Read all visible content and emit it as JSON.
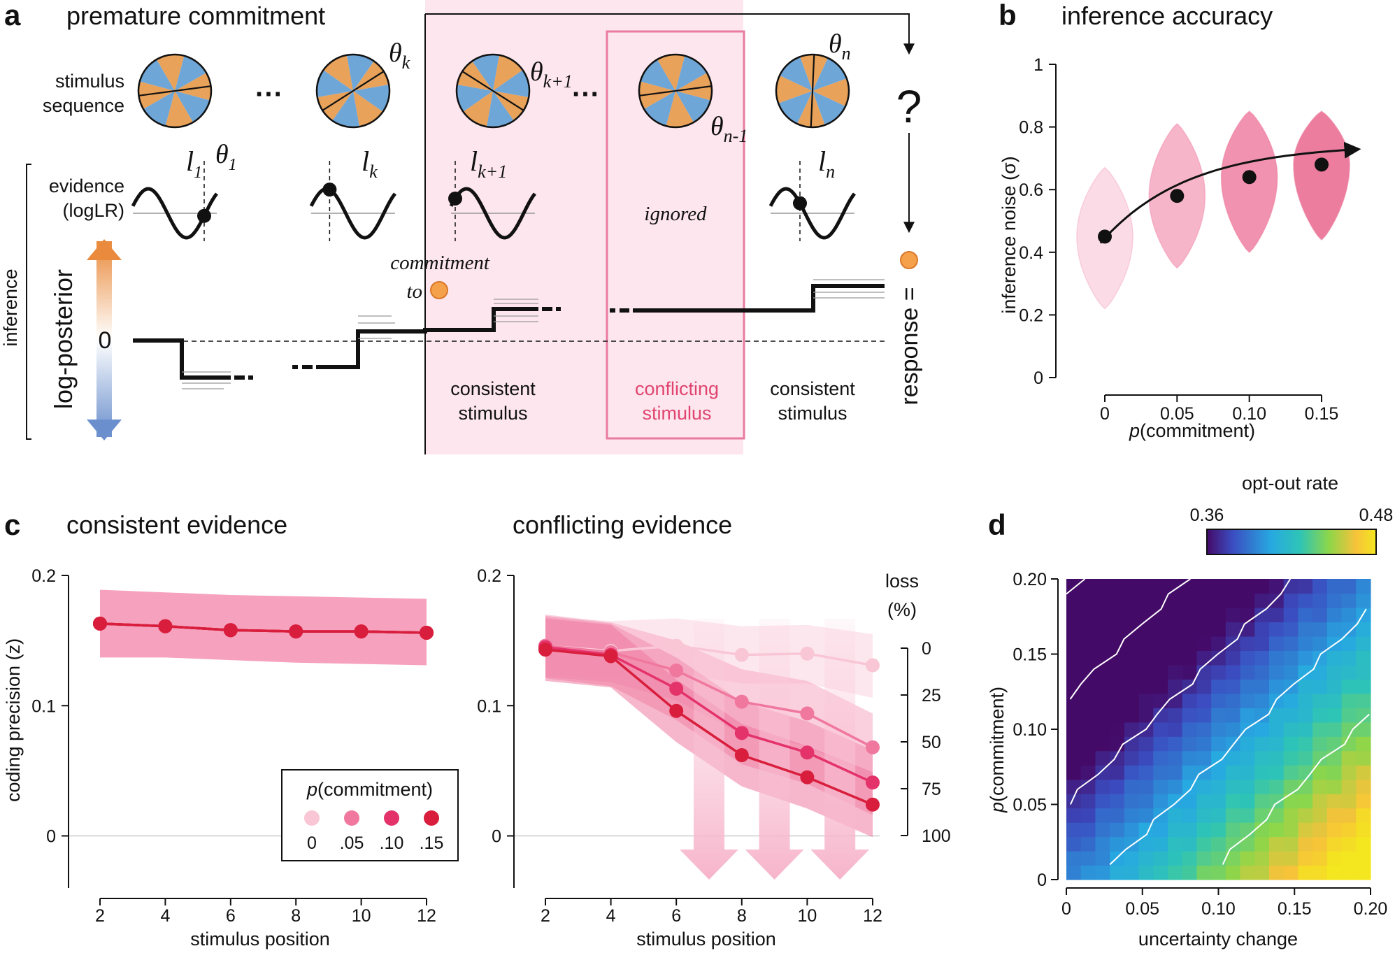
{
  "panel_a": {
    "letter": "a",
    "title": "premature commitment",
    "stimulus_label": [
      "stimulus",
      "sequence"
    ],
    "evidence_label": [
      "evidence",
      "(logLR)"
    ],
    "inference_label": "inference",
    "posterior_label": "log-posterior",
    "zero_label": "0",
    "ellipsis": "···",
    "question": "?",
    "commitment_text": [
      "commitment",
      "to"
    ],
    "ignored_text": "ignored",
    "response_text": "response =",
    "theta_labels": [
      {
        "sym": "θ",
        "sub": "1"
      },
      {
        "sym": "θ",
        "sub": "k"
      },
      {
        "sym": "θ",
        "sub": "k+1"
      },
      {
        "sym": "θ",
        "sub": "n-1"
      },
      {
        "sym": "θ",
        "sub": "n"
      }
    ],
    "l_labels": [
      {
        "sym": "l",
        "sub": "1"
      },
      {
        "sym": "l",
        "sub": "k"
      },
      {
        "sym": "l",
        "sub": "k+1"
      },
      {
        "sym": "l",
        "sub": "n"
      }
    ],
    "stim_labels": [
      [
        "consistent",
        "stimulus"
      ],
      [
        "conflicting",
        "stimulus"
      ],
      [
        "consistent",
        "stimulus"
      ]
    ],
    "colors": {
      "orange": "#e8a25a",
      "blue": "#6fa6d8",
      "pink_bg": "#fde6ee",
      "pink_box": "#e87ba0",
      "conflict_text": "#e0456f",
      "dot_orange": "#f5a04a"
    }
  },
  "panel_b": {
    "letter": "b",
    "title": "inference accuracy",
    "chart_data": {
      "type": "violin",
      "xlabel_italic": "p",
      "xlabel_rest": "(commitment)",
      "ylabel": "inference noise (σ)",
      "x": [
        0,
        0.05,
        0.1,
        0.15
      ],
      "xtick_labels": [
        "0",
        "0.05",
        "0.10",
        "0.15"
      ],
      "medians": [
        0.45,
        0.58,
        0.64,
        0.68
      ],
      "violin_ranges": [
        [
          0.22,
          0.67
        ],
        [
          0.35,
          0.81
        ],
        [
          0.4,
          0.85
        ],
        [
          0.44,
          0.85
        ]
      ],
      "ylim": [
        0,
        1
      ],
      "yticks": [
        0,
        0.2,
        0.4,
        0.6,
        0.8,
        1
      ],
      "ytick_labels": [
        "0",
        "0.2",
        "0.4",
        "0.6",
        "0.8",
        "1"
      ],
      "colors": [
        "#fbdce6",
        "#f7b5ca",
        "#f192b0",
        "#ec7d9f"
      ]
    }
  },
  "panel_c": {
    "letter": "c",
    "title_left": "consistent evidence",
    "title_right": "conflicting evidence",
    "ylabel": "coding precision (z)",
    "xlabel": "stimulus position",
    "loss_label": [
      "loss",
      "(%)"
    ],
    "loss_ticks": [
      0,
      25,
      50,
      75,
      100
    ],
    "legend": {
      "title_italic": "p",
      "title_rest": "(commitment)",
      "labels": [
        "0",
        ".05",
        ".10",
        ".15"
      ],
      "colors": [
        "#f9c6d6",
        "#f0789e",
        "#e4336b",
        "#d81e3c"
      ]
    },
    "chart_data": [
      {
        "type": "line",
        "title": "consistent evidence",
        "x": [
          2,
          4,
          6,
          8,
          10,
          12
        ],
        "ylim": [
          -0.04,
          0.2
        ],
        "yticks": [
          0,
          0.1,
          0.2
        ],
        "ytick_labels": [
          "0",
          "0.1",
          "0.2"
        ],
        "series": [
          {
            "name": "0",
            "values": [
              0.163,
              0.161,
              0.158,
              0.157,
              0.157,
              0.156
            ]
          },
          {
            "name": ".05",
            "values": [
              0.163,
              0.161,
              0.158,
              0.157,
              0.157,
              0.156
            ]
          },
          {
            "name": ".10",
            "values": [
              0.163,
              0.161,
              0.158,
              0.157,
              0.157,
              0.156
            ]
          },
          {
            "name": ".15",
            "values": [
              0.163,
              0.161,
              0.158,
              0.157,
              0.157,
              0.156
            ]
          }
        ],
        "band": {
          "lower": [
            0.137,
            0.137,
            0.135,
            0.133,
            0.132,
            0.131
          ],
          "upper": [
            0.189,
            0.187,
            0.185,
            0.184,
            0.183,
            0.182
          ]
        }
      },
      {
        "type": "line",
        "title": "conflicting evidence",
        "x": [
          2,
          4,
          6,
          8,
          10,
          12
        ],
        "ylim": [
          -0.04,
          0.2
        ],
        "yticks": [
          0,
          0.1,
          0.2
        ],
        "ytick_labels": [
          "0",
          "0.1",
          "0.2"
        ],
        "series": [
          {
            "name": "0",
            "values": [
              0.146,
              0.142,
              0.146,
              0.139,
              0.14,
              0.131
            ]
          },
          {
            "name": ".05",
            "values": [
              0.146,
              0.141,
              0.127,
              0.103,
              0.094,
              0.068
            ]
          },
          {
            "name": ".10",
            "values": [
              0.145,
              0.139,
              0.113,
              0.079,
              0.064,
              0.041
            ]
          },
          {
            "name": ".15",
            "values": [
              0.143,
              0.138,
              0.096,
              0.062,
              0.045,
              0.024
            ]
          }
        ],
        "bands": [
          {
            "lower": [
              0.124,
              0.121,
              0.125,
              0.117,
              0.117,
              0.106
            ],
            "upper": [
              0.168,
              0.165,
              0.167,
              0.161,
              0.162,
              0.155
            ]
          },
          {
            "lower": [
              0.122,
              0.118,
              0.104,
              0.078,
              0.069,
              0.042
            ],
            "upper": [
              0.17,
              0.164,
              0.15,
              0.128,
              0.119,
              0.094
            ]
          },
          {
            "lower": [
              0.121,
              0.115,
              0.089,
              0.055,
              0.04,
              0.016
            ],
            "upper": [
              0.169,
              0.163,
              0.137,
              0.103,
              0.088,
              0.066
            ]
          },
          {
            "lower": [
              0.119,
              0.114,
              0.072,
              0.038,
              0.021,
              -0.001
            ],
            "upper": [
              0.167,
              0.162,
              0.12,
              0.086,
              0.069,
              0.049
            ]
          }
        ],
        "arrows_x": [
          7,
          9,
          11
        ]
      }
    ]
  },
  "panel_d": {
    "letter": "d",
    "colorbar_title": "opt-out rate",
    "colorbar_min": "0.36",
    "colorbar_max": "0.48",
    "chart_data": {
      "type": "heatmap",
      "xlabel": "uncertainty change",
      "ylabel_italic": "p",
      "ylabel_rest": "(commitment)",
      "xlim": [
        0,
        0.2
      ],
      "ylim": [
        0,
        0.2
      ],
      "xticks": [
        0,
        0.05,
        0.1,
        0.15,
        0.2
      ],
      "xtick_labels": [
        "0",
        "0.05",
        "0.10",
        "0.15",
        "0.20"
      ],
      "yticks": [
        0,
        0.05,
        0.1,
        0.15,
        0.2
      ],
      "ytick_labels": [
        "0",
        "0.05",
        "0.10",
        "0.15",
        "0.20"
      ],
      "value_range": [
        0.36,
        0.48
      ],
      "grid_size": 21,
      "contour_lines": 5
    }
  }
}
